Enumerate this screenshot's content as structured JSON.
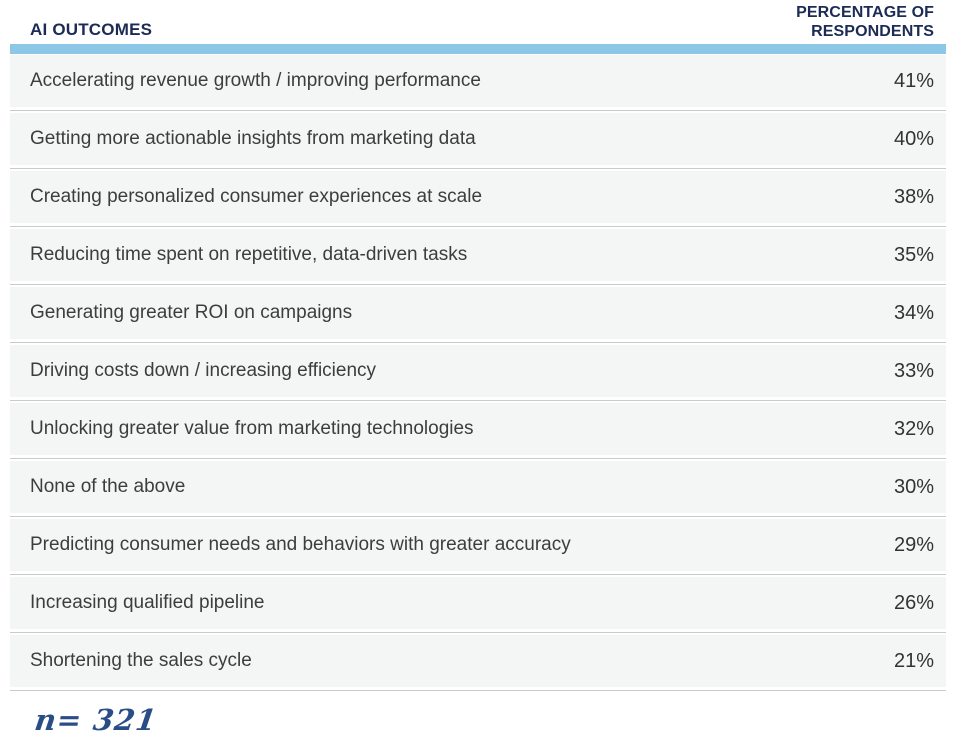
{
  "table": {
    "outcome_header": "AI OUTCOMES",
    "pct_header_line1": "PERCENTAGE OF",
    "pct_header_line2": "RESPONDENTS",
    "rows": [
      {
        "label": "Accelerating revenue growth / improving performance",
        "value": "41%"
      },
      {
        "label": "Getting more actionable insights from marketing data",
        "value": "40%"
      },
      {
        "label": "Creating personalized consumer experiences at scale",
        "value": "38%"
      },
      {
        "label": "Reducing time spent on repetitive, data-driven tasks",
        "value": "35%"
      },
      {
        "label": "Generating greater ROI on campaigns",
        "value": "34%"
      },
      {
        "label": "Driving costs down / increasing efficiency",
        "value": "33%"
      },
      {
        "label": "Unlocking greater value from marketing technologies",
        "value": "32%"
      },
      {
        "label": "None of the above",
        "value": "30%"
      },
      {
        "label": "Predicting consumer needs and behaviors with greater accuracy",
        "value": "29%"
      },
      {
        "label": "Increasing qualified pipeline",
        "value": "26%"
      },
      {
        "label": "Shortening the sales cycle",
        "value": "21%"
      }
    ]
  },
  "footer": {
    "sample_note": "n= 321"
  },
  "colors": {
    "header_navy": "#1c2b55",
    "accent_bar_blue": "#8cc7e6",
    "row_background": "#f4f5f5",
    "row_separator": "#c9cbcb",
    "row_text": "#3d3d3d",
    "footnote_blue": "#2b4d87"
  },
  "chart_data": {
    "type": "table",
    "title": "AI OUTCOMES",
    "value_column": "PERCENTAGE OF RESPONDENTS",
    "categories": [
      "Accelerating revenue growth / improving performance",
      "Getting more actionable insights from marketing data",
      "Creating personalized consumer experiences at scale",
      "Reducing time spent on repetitive, data-driven tasks",
      "Generating greater ROI on campaigns",
      "Driving costs down / increasing efficiency",
      "Unlocking greater value from marketing technologies",
      "None of the above",
      "Predicting consumer needs and behaviors with greater accuracy",
      "Increasing qualified pipeline",
      "Shortening the sales cycle"
    ],
    "values": [
      41,
      40,
      38,
      35,
      34,
      33,
      32,
      30,
      29,
      26,
      21
    ],
    "sample_size": 321
  }
}
